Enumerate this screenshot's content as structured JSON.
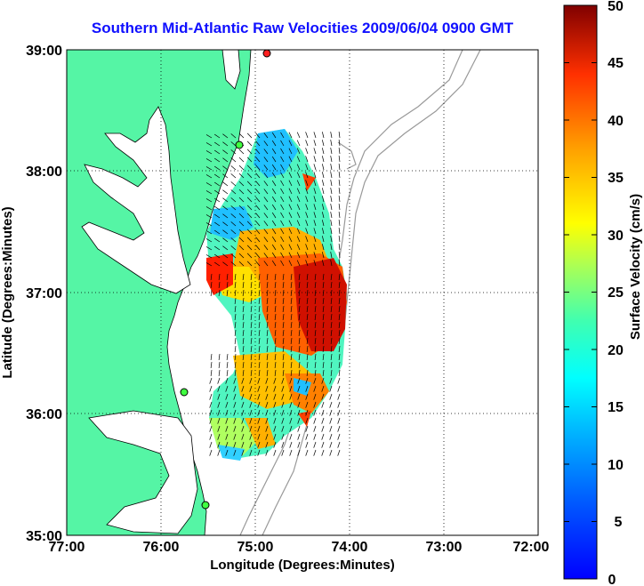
{
  "title": "Southern Mid-Atlantic Raw Velocities 2009/06/04 0900 GMT",
  "map": {
    "xlabel": "Longitude (Degrees:Minutes)",
    "ylabel": "Latitude (Degrees:Minutes)",
    "x_ticks": [
      "77:00",
      "76:00",
      "75:00",
      "74:00",
      "73:00",
      "72:00"
    ],
    "y_ticks": [
      "39:00",
      "38:00",
      "37:00",
      "36:00",
      "35:00"
    ],
    "land_color": "#55f5a5",
    "ocean_color": "#ffffff",
    "grid": "dotted"
  },
  "colorbar": {
    "label": "Surface Velocity (cm/s)",
    "ticks": [
      "50",
      "45",
      "40",
      "35",
      "30",
      "25",
      "20",
      "15",
      "10",
      "5",
      "0"
    ],
    "min": 0,
    "max": 50,
    "colormap": "jet"
  }
}
